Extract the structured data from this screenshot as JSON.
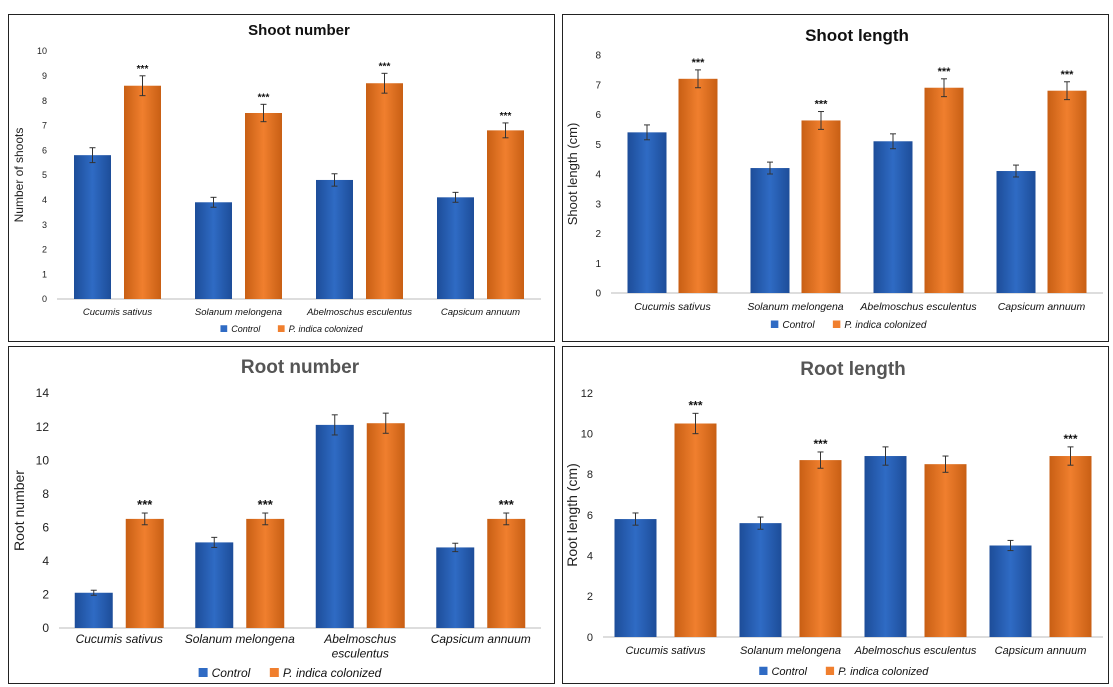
{
  "legend": {
    "control": "Control",
    "colonized": "P. indica colonized"
  },
  "colors": {
    "control": "#2f6bc4",
    "control_dark": "#1d4d99",
    "colonized": "#f07f2e",
    "colonized_dark": "#c85f14",
    "error_bar": "#333333"
  },
  "significance_marker": "***",
  "chart_data": [
    {
      "type": "bar",
      "title": "Shoot number",
      "ylabel": "Number of shoots",
      "ylim": [
        0,
        10
      ],
      "yticks": [
        0,
        1,
        2,
        3,
        4,
        5,
        6,
        7,
        8,
        9,
        10
      ],
      "categories": [
        "Cucumis sativus",
        "Solanum melongena",
        "Abelmoschus esculentus",
        "Capsicum annuum"
      ],
      "series": [
        {
          "name": "Control",
          "values": [
            5.8,
            3.9,
            4.8,
            4.1
          ],
          "errors": [
            0.3,
            0.2,
            0.25,
            0.2
          ]
        },
        {
          "name": "P. indica colonized",
          "values": [
            8.6,
            7.5,
            8.7,
            6.8
          ],
          "errors": [
            0.4,
            0.35,
            0.4,
            0.3
          ],
          "significant": [
            true,
            true,
            true,
            true
          ]
        }
      ],
      "grid": false,
      "legend_position": "bottom"
    },
    {
      "type": "bar",
      "title": "Shoot length",
      "ylabel": "Shoot length (cm)",
      "ylim": [
        0,
        8
      ],
      "yticks": [
        0,
        1,
        2,
        3,
        4,
        5,
        6,
        7,
        8
      ],
      "categories": [
        "Cucumis sativus",
        "Solanum melongena",
        "Abelmoschus esculentus",
        "Capsicum annuum"
      ],
      "series": [
        {
          "name": "Control",
          "values": [
            5.4,
            4.2,
            5.1,
            4.1
          ],
          "errors": [
            0.25,
            0.2,
            0.25,
            0.2
          ]
        },
        {
          "name": "P. indica colonized",
          "values": [
            7.2,
            5.8,
            6.9,
            6.8
          ],
          "errors": [
            0.3,
            0.3,
            0.3,
            0.3
          ],
          "significant": [
            true,
            true,
            true,
            true
          ]
        }
      ],
      "grid": false,
      "legend_position": "bottom"
    },
    {
      "type": "bar",
      "title": "Root number",
      "ylabel": "Root number",
      "ylim": [
        0,
        14
      ],
      "yticks": [
        0,
        2,
        4,
        6,
        8,
        10,
        12,
        14
      ],
      "categories": [
        "Cucumis sativus",
        "Solanum melongena",
        "Abelmoschus esculentus",
        "Capsicum annuum"
      ],
      "series": [
        {
          "name": "Control",
          "values": [
            2.1,
            5.1,
            12.1,
            4.8
          ],
          "errors": [
            0.15,
            0.3,
            0.6,
            0.25
          ]
        },
        {
          "name": "P. indica colonized",
          "values": [
            6.5,
            6.5,
            12.2,
            6.5
          ],
          "errors": [
            0.35,
            0.35,
            0.6,
            0.35
          ],
          "significant": [
            true,
            true,
            false,
            true
          ]
        }
      ],
      "grid": false,
      "legend_position": "bottom"
    },
    {
      "type": "bar",
      "title": "Root length",
      "ylabel": "Root length (cm)",
      "ylim": [
        0,
        12
      ],
      "yticks": [
        0,
        2,
        4,
        6,
        8,
        10,
        12
      ],
      "categories": [
        "Cucumis sativus",
        "Solanum melongena",
        "Abelmoschus esculentus",
        "Capsicum annuum"
      ],
      "series": [
        {
          "name": "Control",
          "values": [
            5.8,
            5.6,
            8.9,
            4.5
          ],
          "errors": [
            0.3,
            0.3,
            0.45,
            0.25
          ]
        },
        {
          "name": "P. indica colonized",
          "values": [
            10.5,
            8.7,
            8.5,
            8.9
          ],
          "errors": [
            0.5,
            0.4,
            0.4,
            0.45
          ],
          "significant": [
            true,
            true,
            false,
            true
          ]
        }
      ],
      "grid": false,
      "legend_position": "bottom"
    }
  ]
}
